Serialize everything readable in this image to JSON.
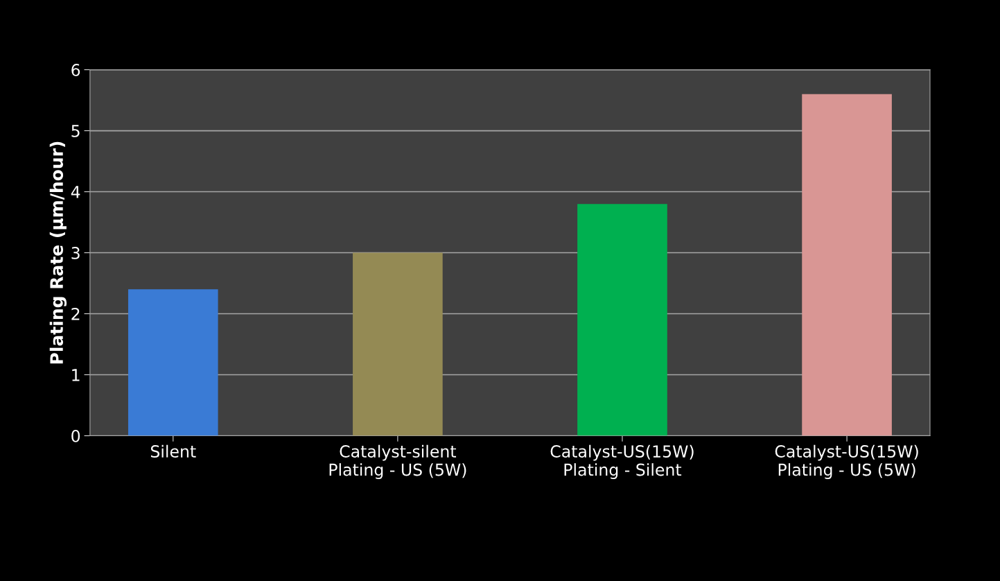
{
  "chart_data": {
    "type": "bar",
    "ylabel": "Plating Rate (µm/hour)",
    "categories": [
      "Silent",
      "Catalyst-silent\nPlating - US (5W)",
      "Catalyst-US(15W)\nPlating - Silent",
      "Catalyst-US(15W)\nPlating - US (5W)"
    ],
    "values": [
      2.4,
      3.0,
      3.8,
      5.6
    ],
    "colors": [
      "#3a7bd5",
      "#948a54",
      "#00b050",
      "#d99694"
    ],
    "ylim": [
      0,
      6
    ],
    "yticks": [
      0,
      1,
      2,
      3,
      4,
      5,
      6
    ],
    "grid": "y"
  }
}
